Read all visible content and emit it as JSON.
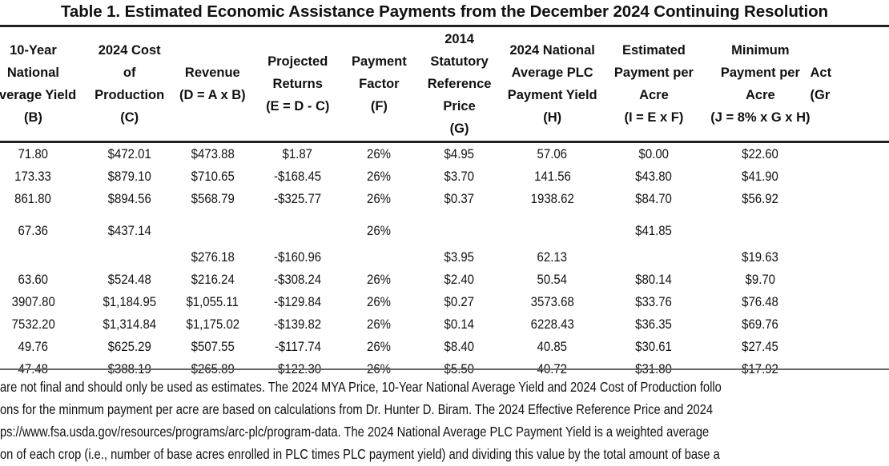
{
  "title": "Table 1. Estimated Economic Assistance Payments from the December 2024 Continuing Resolution",
  "columns": [
    {
      "lines": [
        "10-Year",
        "National",
        "Average Yield",
        "(B)"
      ]
    },
    {
      "lines": [
        "2024 Cost",
        "of",
        "Production",
        "(C)"
      ]
    },
    {
      "lines": [
        "Revenue",
        "(D = A x B)"
      ]
    },
    {
      "lines": [
        "Projected",
        "Returns",
        "(E = D - C)"
      ]
    },
    {
      "lines": [
        "Payment",
        "Factor",
        "(F)"
      ]
    },
    {
      "lines": [
        "2014",
        "Statutory",
        "Reference",
        "Price",
        "(G)"
      ]
    },
    {
      "lines": [
        "2024 National",
        "Average  PLC",
        "Payment Yield",
        "(H)"
      ]
    },
    {
      "lines": [
        "Estimated",
        "Payment per",
        "Acre",
        "(I = E x F)"
      ]
    },
    {
      "lines": [
        "Minimum",
        "Payment per",
        "Acre",
        "(J = 8% x G x H)"
      ]
    },
    {
      "lines": [
        "Act",
        "(Gr"
      ]
    }
  ],
  "rows": [
    {
      "cells": [
        "71.80",
        "$472.01",
        "$473.88",
        "$1.87",
        "26%",
        "$4.95",
        "57.06",
        "$0.00",
        "$22.60",
        ""
      ]
    },
    {
      "cells": [
        "173.33",
        "$879.10",
        "$710.65",
        "-$168.45",
        "26%",
        "$3.70",
        "141.56",
        "$43.80",
        "$41.90",
        ""
      ]
    },
    {
      "cells": [
        "861.80",
        "$894.56",
        "$568.79",
        "-$325.77",
        "26%",
        "$0.37",
        "1938.62",
        "$84.70",
        "$56.92",
        ""
      ]
    },
    {
      "tall": true,
      "align": [
        "top",
        "top",
        "bot",
        "bot",
        "top",
        "bot",
        "bot",
        "top",
        "bot",
        "top"
      ],
      "cells": [
        "67.36",
        "$437.14",
        "$276.18",
        "-$160.96",
        "26%",
        "$3.95",
        "62.13",
        "$41.85",
        "$19.63",
        ""
      ]
    },
    {
      "cells": [
        "63.60",
        "$524.48",
        "$216.24",
        "-$308.24",
        "26%",
        "$2.40",
        "50.54",
        "$80.14",
        "$9.70",
        ""
      ]
    },
    {
      "cells": [
        "3907.80",
        "$1,184.95",
        "$1,055.11",
        "-$129.84",
        "26%",
        "$0.27",
        "3573.68",
        "$33.76",
        "$76.48",
        ""
      ]
    },
    {
      "cells": [
        "7532.20",
        "$1,314.84",
        "$1,175.02",
        "-$139.82",
        "26%",
        "$0.14",
        "6228.43",
        "$36.35",
        "$69.76",
        ""
      ]
    },
    {
      "cells": [
        "49.76",
        "$625.29",
        "$507.55",
        "-$117.74",
        "26%",
        "$8.40",
        "40.85",
        "$30.61",
        "$27.45",
        ""
      ]
    },
    {
      "cells": [
        "47.48",
        "$388.19",
        "$265.89",
        "-$122.30",
        "26%",
        "$5.50",
        "40.72",
        "$31.80",
        "$17.92",
        ""
      ]
    }
  ],
  "notes": [
    "are not final and should only be used as estimates. The 2024 MYA Price, 10-Year National Average Yield and 2024 Cost of Production follo",
    "ons for the minmum payment per acre are based on calculations from Dr. Hunter D. Biram. The 2024 Effective Reference Price and 2024",
    "ps://www.fsa.usda.gov/resources/programs/arc-plc/program-data. The 2024 National Average PLC Payment Yield is a weighted average",
    "on of each crop (i.e., number of base acres enrolled in PLC times PLC payment yield) and dividing this value by the total amount of base a"
  ]
}
